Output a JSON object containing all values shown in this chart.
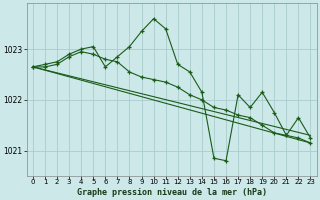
{
  "title": "Graphe pression niveau de la mer (hPa)",
  "bg_color": "#cce8e8",
  "grid_color": "#aacccc",
  "line_color": "#1a5c1a",
  "xlim": [
    -0.5,
    23.5
  ],
  "ylim": [
    1020.5,
    1023.9
  ],
  "yticks": [
    1021,
    1022,
    1023
  ],
  "xticks": [
    0,
    1,
    2,
    3,
    4,
    5,
    6,
    7,
    8,
    9,
    10,
    11,
    12,
    13,
    14,
    15,
    16,
    17,
    18,
    19,
    20,
    21,
    22,
    23
  ],
  "series_smooth": {
    "x": [
      0,
      1,
      2,
      3,
      4,
      5,
      6,
      7,
      8,
      9,
      10,
      11,
      12,
      13,
      14,
      15,
      16,
      17,
      18,
      19,
      20,
      21,
      22,
      23
    ],
    "y": [
      1022.65,
      1022.65,
      1022.7,
      1022.85,
      1022.95,
      1022.9,
      1022.8,
      1022.75,
      1022.55,
      1022.45,
      1022.4,
      1022.35,
      1022.25,
      1022.1,
      1022.0,
      1021.85,
      1021.8,
      1021.7,
      1021.65,
      1021.5,
      1021.35,
      1021.3,
      1021.25,
      1021.15
    ]
  },
  "series_variable": {
    "x": [
      0,
      1,
      2,
      3,
      4,
      5,
      6,
      7,
      8,
      9,
      10,
      11,
      12,
      13,
      14,
      15,
      16,
      17,
      18,
      19,
      20,
      21,
      22,
      23
    ],
    "y": [
      1022.65,
      1022.7,
      1022.75,
      1022.9,
      1023.0,
      1023.05,
      1022.65,
      1022.85,
      1023.05,
      1023.35,
      1023.6,
      1023.4,
      1022.7,
      1022.55,
      1022.15,
      1020.85,
      1020.8,
      1022.1,
      1021.85,
      1022.15,
      1021.75,
      1021.3,
      1021.65,
      1021.25
    ]
  },
  "series_trend": {
    "x": [
      0,
      23
    ],
    "y": [
      1022.65,
      1021.15
    ]
  }
}
